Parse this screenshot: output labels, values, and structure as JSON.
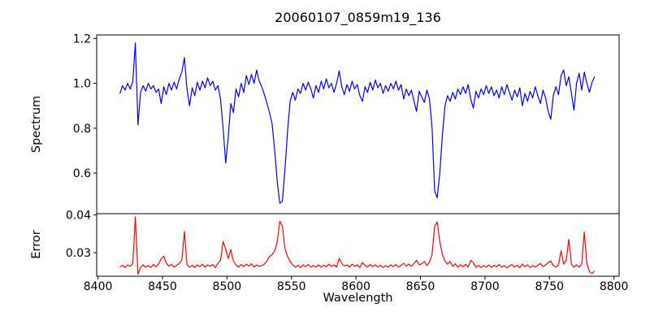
{
  "chart_data": [
    {
      "type": "line",
      "title": "20060107_0859m19_136",
      "ylabel": "Spectrum",
      "xlabel": "",
      "grid": false,
      "legend_position": "none",
      "xlim": [
        8399,
        8804
      ],
      "ylim": [
        0.419,
        1.216
      ],
      "yticks": [
        {
          "v": 0.6,
          "label": "0.6"
        },
        {
          "v": 0.8,
          "label": "0.8"
        },
        {
          "v": 1.0,
          "label": "1.0"
        },
        {
          "v": 1.2,
          "label": "1.2"
        }
      ],
      "series": [
        {
          "name": "spectrum",
          "color": "#0000ff",
          "x_start": 8417,
          "x_step": 2,
          "values": [
            0.955,
            0.99,
            0.97,
            1.0,
            0.975,
            1.01,
            1.18,
            0.815,
            0.96,
            0.99,
            0.965,
            1.0,
            0.975,
            0.99,
            0.96,
            0.975,
            0.91,
            0.985,
            0.95,
            1.0,
            0.97,
            1.005,
            0.975,
            1.02,
            1.05,
            1.115,
            0.975,
            0.9,
            0.98,
            0.945,
            1.005,
            0.97,
            1.01,
            0.98,
            1.025,
            0.99,
            1.01,
            0.97,
            0.99,
            0.93,
            0.8,
            0.645,
            0.76,
            0.91,
            0.87,
            0.975,
            0.94,
            1.0,
            0.96,
            1.035,
            0.995,
            1.04,
            1.0,
            1.06,
            1.01,
            0.985,
            0.95,
            0.91,
            0.87,
            0.82,
            0.7,
            0.56,
            0.465,
            0.475,
            0.62,
            0.79,
            0.92,
            0.96,
            0.925,
            0.975,
            0.955,
            1.0,
            0.97,
            1.005,
            0.975,
            0.935,
            0.99,
            0.96,
            1.01,
            0.975,
            1.02,
            0.98,
            1.0,
            0.96,
            1.0,
            1.055,
            0.985,
            0.95,
            0.995,
            0.965,
            1.01,
            0.975,
            0.995,
            0.945,
            0.92,
            0.985,
            0.96,
            1.005,
            0.97,
            1.015,
            0.98,
            1.0,
            0.955,
            0.99,
            0.965,
            1.0,
            0.975,
            1.01,
            0.97,
            0.995,
            0.93,
            0.975,
            0.945,
            0.97,
            0.92,
            0.875,
            0.965,
            0.94,
            0.915,
            0.97,
            0.93,
            0.8,
            0.52,
            0.49,
            0.6,
            0.77,
            0.9,
            0.945,
            0.92,
            0.96,
            0.93,
            0.975,
            0.95,
            0.985,
            0.955,
            0.995,
            0.93,
            0.89,
            0.965,
            0.935,
            0.975,
            0.95,
            0.99,
            0.955,
            0.985,
            0.945,
            0.97,
            0.935,
            0.985,
            0.95,
            0.995,
            0.96,
            0.925,
            0.97,
            0.94,
            0.98,
            0.9,
            0.955,
            0.92,
            0.965,
            0.935,
            0.985,
            0.945,
            0.91,
            0.97,
            0.935,
            0.875,
            0.84,
            0.945,
            0.985,
            0.95,
            1.035,
            1.06,
            0.99,
            1.03,
            0.955,
            0.88,
            1.0,
            1.045,
            0.97,
            1.05,
            1.0,
            0.96,
            1.005,
            1.03
          ]
        }
      ]
    },
    {
      "type": "line",
      "title": "",
      "ylabel": "Error",
      "xlabel": "Wavelength",
      "grid": false,
      "legend_position": "none",
      "xlim": [
        8399,
        8804
      ],
      "ylim": [
        0.0238,
        0.0403
      ],
      "yticks": [
        {
          "v": 0.03,
          "label": "0.03"
        },
        {
          "v": 0.04,
          "label": "0.04"
        }
      ],
      "xticks": [
        {
          "v": 8400,
          "label": "8400"
        },
        {
          "v": 8450,
          "label": "8450"
        },
        {
          "v": 8500,
          "label": "8500"
        },
        {
          "v": 8550,
          "label": "8550"
        },
        {
          "v": 8600,
          "label": "8600"
        },
        {
          "v": 8650,
          "label": "8650"
        },
        {
          "v": 8700,
          "label": "8700"
        },
        {
          "v": 8750,
          "label": "8750"
        },
        {
          "v": 8800,
          "label": "8800"
        }
      ],
      "series": [
        {
          "name": "error",
          "color": "#ff0000",
          "x_start": 8417,
          "x_step": 2,
          "values": [
            0.0262,
            0.0267,
            0.0261,
            0.0268,
            0.0264,
            0.0272,
            0.0395,
            0.0243,
            0.0262,
            0.0268,
            0.0262,
            0.0266,
            0.0261,
            0.0269,
            0.0263,
            0.027,
            0.0284,
            0.0291,
            0.0272,
            0.0265,
            0.0269,
            0.0262,
            0.0267,
            0.0272,
            0.028,
            0.0356,
            0.0269,
            0.0262,
            0.0267,
            0.0261,
            0.0268,
            0.0263,
            0.027,
            0.0262,
            0.0268,
            0.0264,
            0.0269,
            0.0261,
            0.0272,
            0.028,
            0.033,
            0.031,
            0.0285,
            0.0308,
            0.0278,
            0.0268,
            0.0262,
            0.0269,
            0.0263,
            0.027,
            0.0265,
            0.0271,
            0.0262,
            0.0268,
            0.0264,
            0.0266,
            0.027,
            0.0278,
            0.029,
            0.0295,
            0.0305,
            0.033,
            0.0383,
            0.037,
            0.031,
            0.029,
            0.0277,
            0.0268,
            0.0262,
            0.0267,
            0.0261,
            0.0268,
            0.0263,
            0.0269,
            0.0262,
            0.0266,
            0.0262,
            0.0268,
            0.0262,
            0.0267,
            0.0263,
            0.027,
            0.0264,
            0.0268,
            0.0262,
            0.0285,
            0.0272,
            0.0265,
            0.0268,
            0.0262,
            0.027,
            0.0264,
            0.0268,
            0.0261,
            0.0274,
            0.0267,
            0.0262,
            0.0269,
            0.0263,
            0.0268,
            0.0262,
            0.0267,
            0.0261,
            0.0266,
            0.0262,
            0.0268,
            0.0263,
            0.0269,
            0.0262,
            0.0267,
            0.0272,
            0.0265,
            0.027,
            0.0264,
            0.0272,
            0.028,
            0.0268,
            0.0271,
            0.0277,
            0.0266,
            0.0276,
            0.0295,
            0.037,
            0.0381,
            0.033,
            0.0295,
            0.0278,
            0.027,
            0.0277,
            0.0264,
            0.0271,
            0.0262,
            0.0268,
            0.0263,
            0.0269,
            0.0262,
            0.028,
            0.0274,
            0.0262,
            0.0267,
            0.0261,
            0.0266,
            0.0262,
            0.0268,
            0.0261,
            0.0267,
            0.0263,
            0.0269,
            0.0262,
            0.0266,
            0.026,
            0.0265,
            0.0269,
            0.0262,
            0.0267,
            0.026,
            0.027,
            0.0263,
            0.0268,
            0.0261,
            0.0266,
            0.0262,
            0.0267,
            0.0272,
            0.0263,
            0.0268,
            0.0274,
            0.0278,
            0.0266,
            0.0262,
            0.0268,
            0.0305,
            0.027,
            0.028,
            0.0335,
            0.027,
            0.0262,
            0.0268,
            0.0262,
            0.027,
            0.0355,
            0.0272,
            0.025,
            0.0245,
            0.0252
          ]
        }
      ]
    }
  ]
}
